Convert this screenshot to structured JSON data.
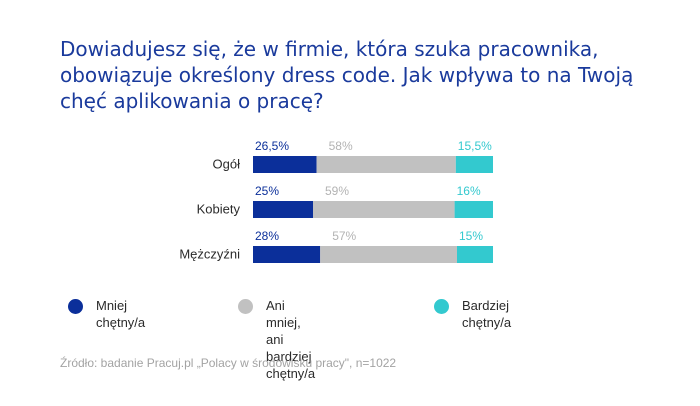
{
  "title": {
    "lines": [
      "Dowiadujesz się, że w firmie, która szuka pracownika,",
      "obowiązuje określony dress code. Jak wpływa to na Twoją",
      "chęć aplikowania o pracę?"
    ]
  },
  "chart_data": {
    "type": "bar",
    "orientation": "horizontal",
    "stacked": true,
    "categories": [
      "Ogół",
      "Kobiety",
      "Mężczyźni"
    ],
    "series": [
      {
        "name": "Mniej chętny/a",
        "values": [
          26.5,
          25,
          28
        ],
        "labels": [
          "26,5%",
          "25%",
          "28%"
        ],
        "color": "#0b2f9a"
      },
      {
        "name": "Ani mniej, ani bardziej chętny/a",
        "values": [
          58,
          59,
          57
        ],
        "labels": [
          "58%",
          "59%",
          "57%"
        ],
        "color": "#c1c1c1"
      },
      {
        "name": "Bardziej chętny/a",
        "values": [
          15.5,
          16,
          15
        ],
        "labels": [
          "15,5%",
          "16%",
          "15%"
        ],
        "color": "#33c9cf"
      }
    ],
    "xlim": [
      0,
      100
    ],
    "grid": false,
    "legend_position": "bottom"
  },
  "legend": {
    "items": [
      {
        "lines": [
          "Mniej chętny/a"
        ],
        "color": "#0b2f9a"
      },
      {
        "lines": [
          "Ani mniej, ani bardziej",
          "chętny/a"
        ],
        "color": "#c1c1c1"
      },
      {
        "lines": [
          "Bardziej chętny/a"
        ],
        "color": "#33c9cf"
      }
    ]
  },
  "source": "Źródło: badanie Pracuj.pl „Polacy w środowisku pracy\", n=1022"
}
